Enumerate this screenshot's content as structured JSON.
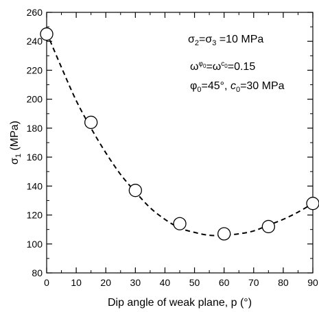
{
  "chart_data": {
    "type": "scatter",
    "xlabel": "Dip angle of weak plane, p (°)",
    "ylabel": "σ1 (MPa)",
    "xlim": [
      0,
      90
    ],
    "ylim": [
      80,
      260
    ],
    "xticks": [
      0,
      10,
      20,
      30,
      40,
      50,
      60,
      70,
      80,
      90
    ],
    "yticks": [
      80,
      100,
      120,
      140,
      160,
      180,
      200,
      220,
      240,
      260
    ],
    "grid": false,
    "series": [
      {
        "kind": "points",
        "marker": "open-circle",
        "x": [
          0,
          15,
          30,
          45,
          60,
          75,
          90
        ],
        "y": [
          245,
          184,
          137,
          114,
          107,
          112,
          128
        ]
      },
      {
        "kind": "fitted-curve",
        "line_style": "dashed",
        "x": [
          0,
          5,
          10,
          15,
          20,
          25,
          30,
          35,
          40,
          45,
          50,
          55,
          60,
          65,
          70,
          75,
          80,
          85,
          90
        ],
        "y": [
          246,
          222,
          199,
          180,
          163,
          148,
          136,
          125,
          117,
          111,
          108,
          106,
          106,
          107,
          109,
          113,
          117,
          122,
          128
        ]
      }
    ],
    "annotations": [
      "σ2=σ3 =10 MPa",
      "ωφ0=ωc0=0.15",
      "φ0=45°, c0=30 MPa"
    ]
  }
}
